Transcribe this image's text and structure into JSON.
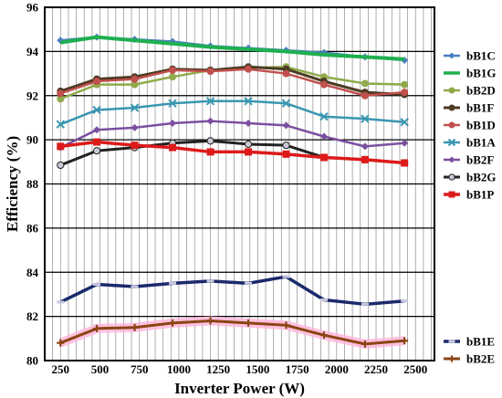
{
  "chart_data": {
    "type": "line",
    "title": "",
    "xlabel": "Inverter Power (W)",
    "ylabel": "Efficiency  (%)",
    "x": [
      250,
      480,
      720,
      960,
      1200,
      1440,
      1680,
      1920,
      2180,
      2430
    ],
    "x_ticks": [
      250,
      500,
      750,
      1000,
      1250,
      1500,
      1750,
      2000,
      2250,
      2500
    ],
    "xlim": [
      150,
      2620
    ],
    "y_ticks": [
      80,
      82,
      84,
      86,
      88,
      90,
      92,
      94,
      96
    ],
    "ylim": [
      80,
      96
    ],
    "grid": true,
    "legend_position": "right",
    "series": [
      {
        "name": "bB1C",
        "color": "#4a7fc1",
        "marker": "diamond",
        "lineWidth": 2.5,
        "values": [
          94.5,
          94.65,
          94.55,
          94.45,
          94.25,
          94.15,
          94.05,
          93.95,
          93.75,
          93.6
        ]
      },
      {
        "name": "bB1G",
        "color": "#1fb050",
        "marker": "none",
        "lineWidth": 4,
        "values": [
          94.4,
          94.65,
          94.5,
          94.35,
          94.2,
          94.1,
          94.0,
          93.85,
          93.75,
          93.65
        ]
      },
      {
        "name": "bB2D",
        "color": "#8faa4a",
        "marker": "circle",
        "lineWidth": 2.5,
        "values": [
          91.85,
          92.5,
          92.5,
          92.85,
          93.15,
          93.25,
          93.3,
          92.85,
          92.55,
          92.5
        ]
      },
      {
        "name": "bB1F",
        "color": "#4d3b23",
        "marker": "circle",
        "lineWidth": 3,
        "values": [
          92.2,
          92.75,
          92.85,
          93.2,
          93.15,
          93.3,
          93.2,
          92.65,
          92.15,
          92.05
        ]
      },
      {
        "name": "bB1D",
        "color": "#c0504d",
        "marker": "circle",
        "lineWidth": 2.5,
        "values": [
          92.1,
          92.65,
          92.75,
          93.15,
          93.1,
          93.2,
          93.0,
          92.5,
          92.0,
          92.15
        ]
      },
      {
        "name": "bB1A",
        "color": "#3a97b1",
        "marker": "cross",
        "lineWidth": 2.5,
        "values": [
          90.7,
          91.35,
          91.45,
          91.65,
          91.75,
          91.75,
          91.65,
          91.05,
          90.95,
          90.8
        ]
      },
      {
        "name": "bB2F",
        "color": "#7b4fa0",
        "marker": "diamond",
        "lineWidth": 2.5,
        "values": [
          89.65,
          90.45,
          90.55,
          90.75,
          90.85,
          90.75,
          90.65,
          90.15,
          89.7,
          89.85
        ]
      },
      {
        "name": "bB2G",
        "color": "#222222",
        "marker": "star",
        "lineWidth": 3,
        "values": [
          88.85,
          89.5,
          89.65,
          89.85,
          89.95,
          89.8,
          89.75,
          89.2,
          89.1,
          88.95
        ]
      },
      {
        "name": "bB1P",
        "color": "#dd1a1a",
        "marker": "square",
        "lineWidth": 3.5,
        "values": [
          89.7,
          89.9,
          89.75,
          89.65,
          89.45,
          89.45,
          89.35,
          89.2,
          89.1,
          88.95
        ]
      },
      {
        "name": "bB1E",
        "color": "#1b2a6b",
        "marker": "dash",
        "lineWidth": 3.5,
        "values": [
          82.65,
          83.45,
          83.35,
          83.5,
          83.6,
          83.5,
          83.8,
          82.75,
          82.55,
          82.7
        ]
      },
      {
        "name": "bB2E",
        "color": "#8b4513",
        "marker": "plus",
        "lineWidth": 3,
        "glow": "#ffb3d9",
        "values": [
          80.8,
          81.45,
          81.5,
          81.7,
          81.8,
          81.7,
          81.6,
          81.15,
          80.75,
          80.9
        ]
      }
    ],
    "legend_groups": [
      [
        "bB1C",
        "bB1G",
        "bB2D",
        "bB1F",
        "bB1D",
        "bB1A",
        "bB2F",
        "bB2G",
        "bB1P"
      ],
      [
        "bB1E",
        "bB2E"
      ]
    ]
  }
}
